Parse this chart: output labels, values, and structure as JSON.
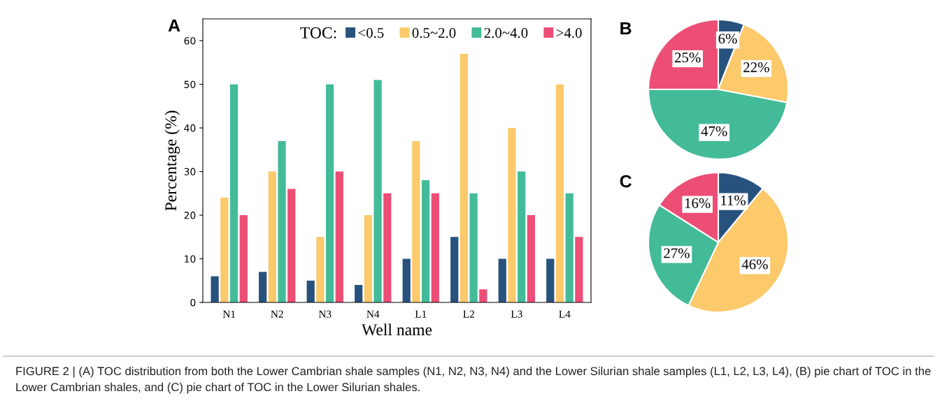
{
  "chart_data": [
    {
      "type": "bar",
      "title": "A",
      "xlabel": "Well name",
      "ylabel": "Percentage (%)",
      "legend_title": "TOC:",
      "categories": [
        "N1",
        "N2",
        "N3",
        "N4",
        "L1",
        "L2",
        "L3",
        "L4"
      ],
      "series": [
        {
          "name": "<0.5",
          "color": "#27527e",
          "values": [
            6,
            7,
            5,
            4,
            10,
            15,
            10,
            10
          ]
        },
        {
          "name": "0.5~2.0",
          "color": "#fcc96b",
          "values": [
            24,
            30,
            15,
            20,
            37,
            57,
            40,
            50
          ]
        },
        {
          "name": "2.0~4.0",
          "color": "#44bb98",
          "values": [
            50,
            37,
            50,
            51,
            28,
            25,
            30,
            25
          ]
        },
        {
          "name": ">4.0",
          "color": "#ec4e76",
          "values": [
            20,
            26,
            30,
            25,
            25,
            3,
            20,
            15
          ]
        }
      ],
      "ylim": [
        0,
        65
      ],
      "yticks": [
        0,
        10,
        20,
        30,
        40,
        50,
        60
      ],
      "grid": false,
      "legend": "top right",
      "annotations": [
        "FIGURE 2 | (A) TOC distribution from both the Lower Cambrian shale samples (N1, N2, N3, N4) and the Lower Silurian shale samples (L1, L2, L3, L4), (B) pie chart of TOC in the Lower Cambrian shales, and (C) pie chart of TOC in the Lower Silurian shales."
      ]
    },
    {
      "type": "pie",
      "title": "B",
      "categories": [
        null,
        null,
        null,
        null
      ],
      "values": [
        6,
        22,
        47,
        25
      ],
      "colors": [
        "#27527e",
        "#fcc96b",
        "#44bb98",
        "#ec4e76"
      ],
      "value_labels": [
        "6%",
        "22%",
        "47%",
        "25%"
      ]
    },
    {
      "type": "pie",
      "title": "C",
      "categories": [
        null,
        null,
        null,
        null
      ],
      "values": [
        11,
        46,
        27,
        16
      ],
      "colors": [
        "#27527e",
        "#fcc96b",
        "#44bb98",
        "#ec4e76"
      ],
      "value_labels": [
        "11%",
        "46%",
        "27%",
        "16%"
      ]
    }
  ]
}
